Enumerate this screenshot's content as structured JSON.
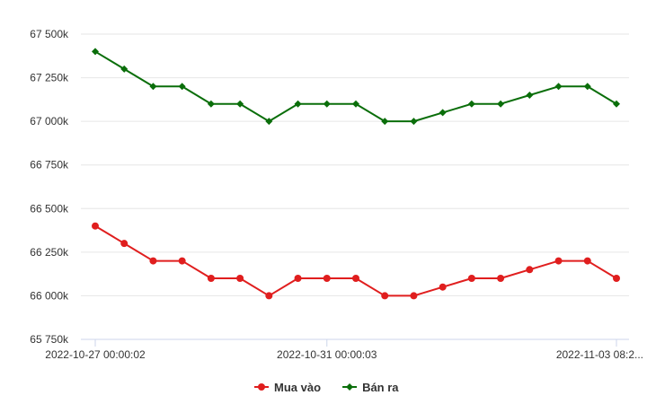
{
  "chart_data": {
    "type": "line",
    "title": "",
    "xlabel": "",
    "ylabel": "",
    "x_tick_labels": [
      {
        "index": 0,
        "label": "2022-10-27 00:00:02"
      },
      {
        "index": 8,
        "label": "2022-10-31 00:00:03"
      },
      {
        "index": 18,
        "label": "2022-11-03 08:2..."
      }
    ],
    "y_ticks": [
      65750,
      66000,
      66250,
      66500,
      66750,
      67000,
      67250,
      67500
    ],
    "y_tick_labels": [
      "65 750k",
      "66 000k",
      "66 250k",
      "66 500k",
      "66 750k",
      "67 000k",
      "67 250k",
      "67 500k"
    ],
    "ylim": [
      65750,
      67500
    ],
    "grid": true,
    "legend_position": "bottom-center",
    "series": [
      {
        "name": "Mua vào",
        "color": "#e01e1e",
        "marker": "circle",
        "values": [
          66400,
          66300,
          66200,
          66200,
          66100,
          66100,
          66000,
          66100,
          66100,
          66100,
          66000,
          66000,
          66050,
          66100,
          66100,
          66150,
          66200,
          66200,
          66100
        ]
      },
      {
        "name": "Bán ra",
        "color": "#0a6e0a",
        "marker": "diamond",
        "values": [
          67400,
          67300,
          67200,
          67200,
          67100,
          67100,
          67000,
          67100,
          67100,
          67100,
          67000,
          67000,
          67050,
          67100,
          67100,
          67150,
          67200,
          67200,
          67100
        ]
      }
    ]
  }
}
